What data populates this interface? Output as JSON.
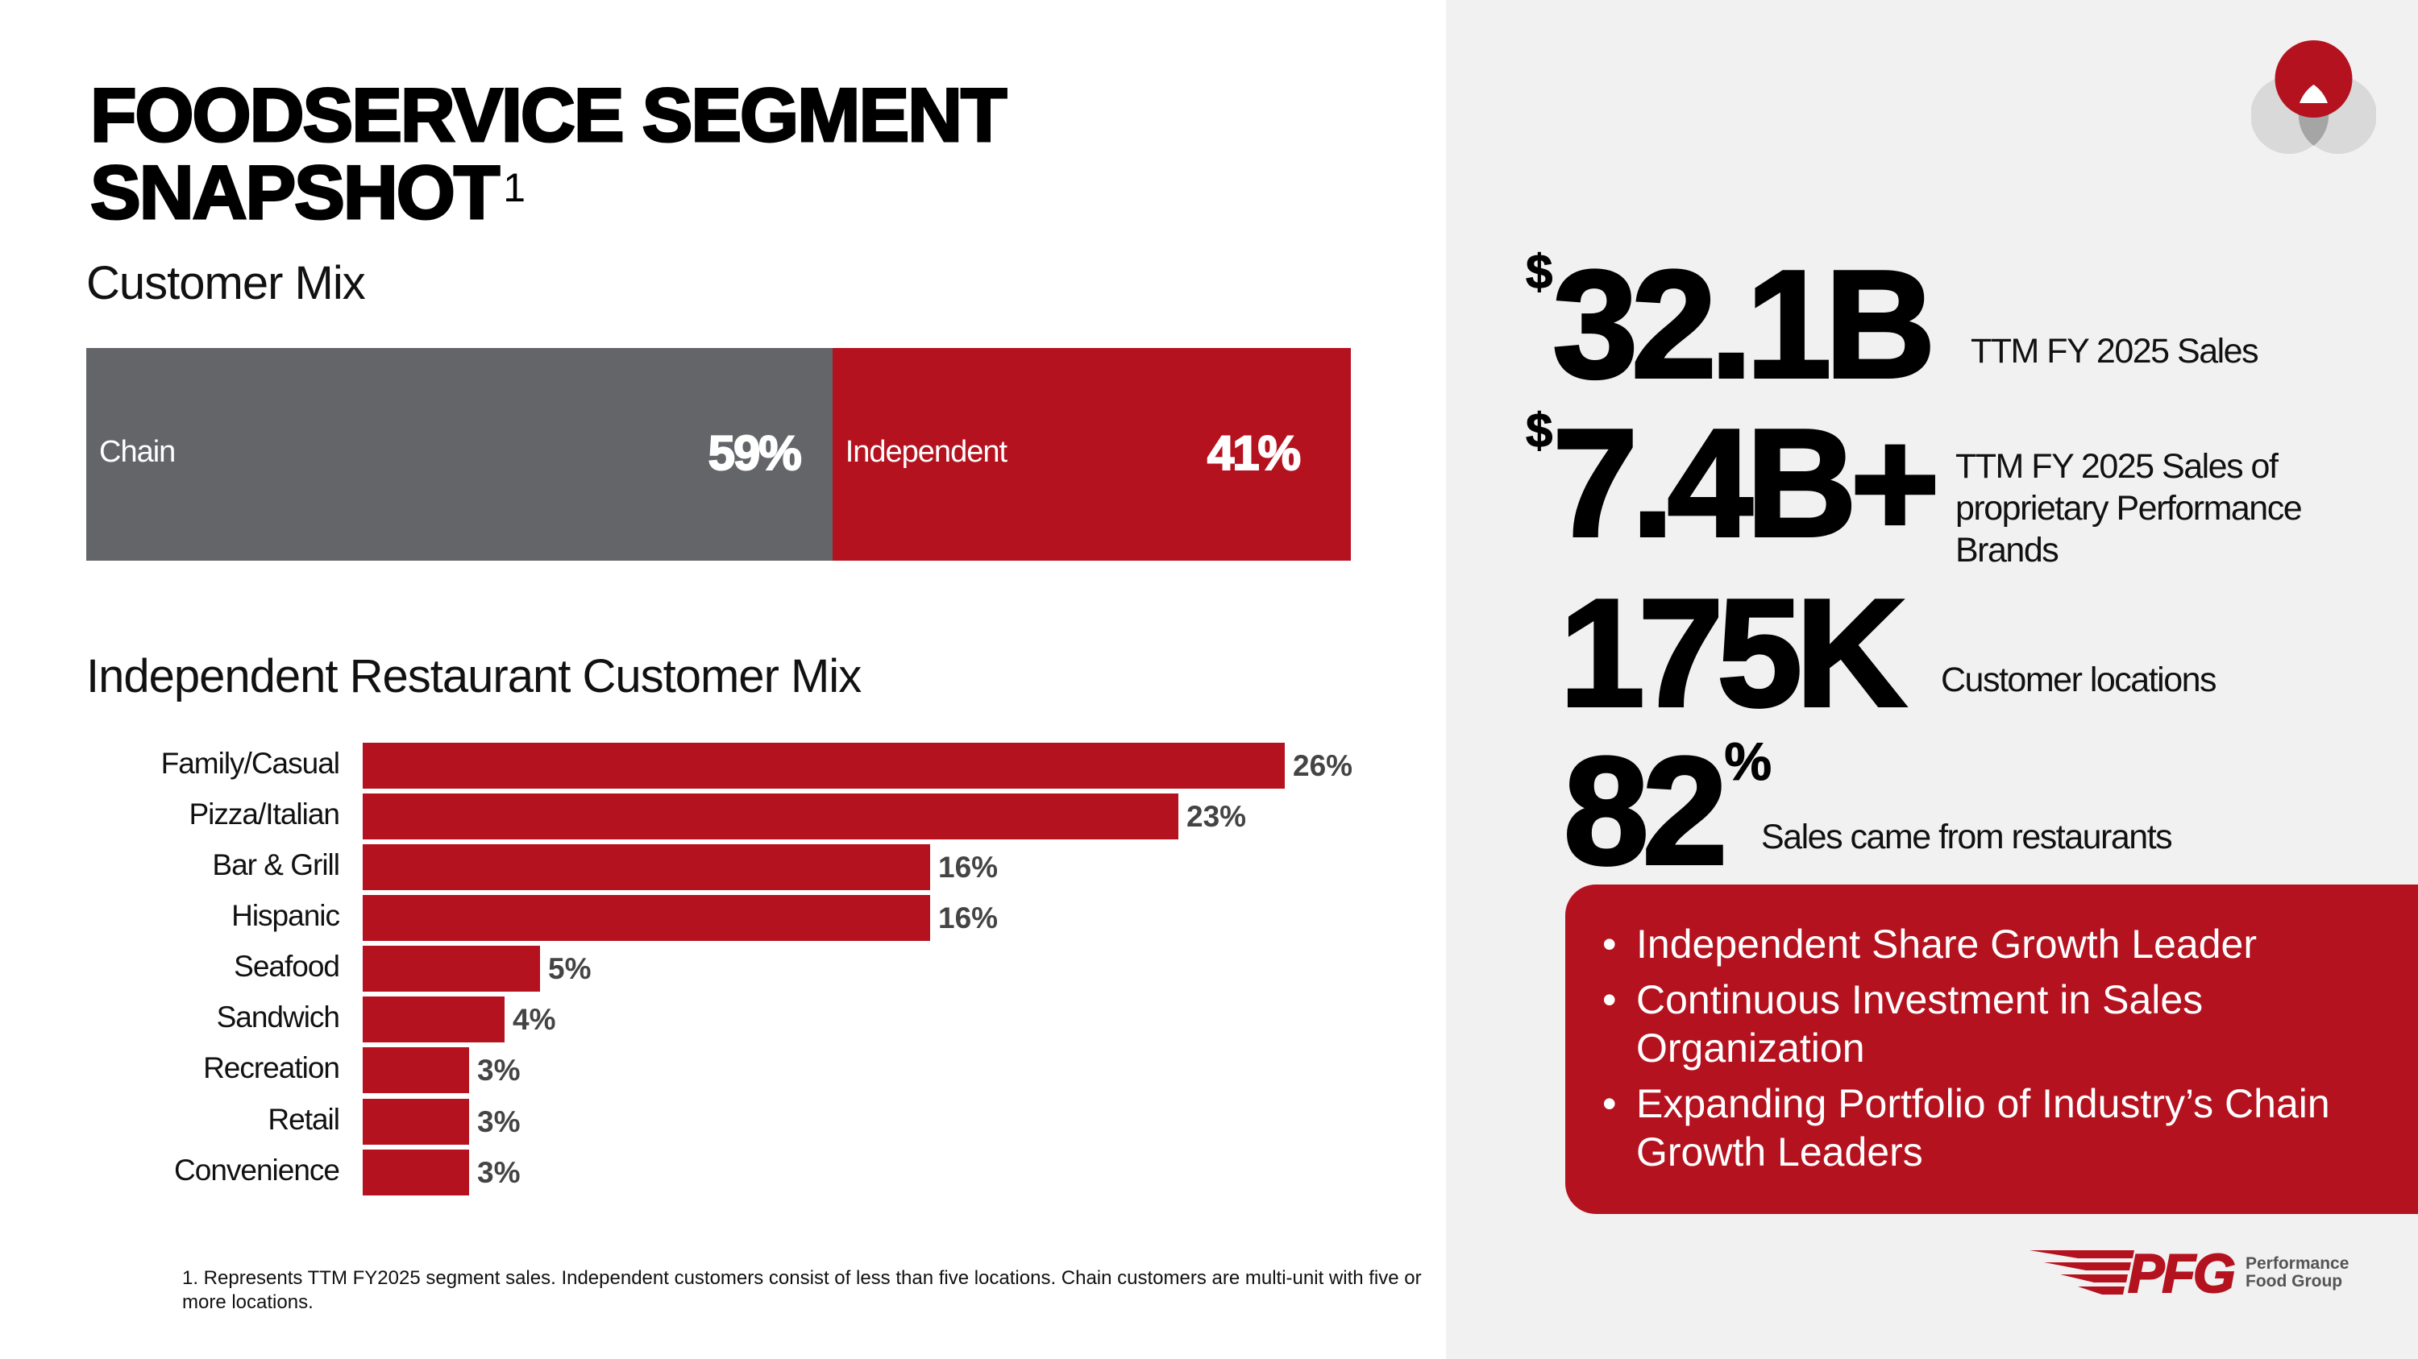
{
  "title": {
    "line1": "FOODSERVICE SEGMENT",
    "line2": "SNAPSHOT",
    "footnote_marker": "1"
  },
  "customer_mix": {
    "heading": "Customer Mix",
    "segments": [
      {
        "label": "Chain",
        "value": "59%",
        "pct": 59,
        "color": "#636569"
      },
      {
        "label": "Independent",
        "value": "41%",
        "pct": 41,
        "color": "#b5121f"
      }
    ]
  },
  "independent_mix": {
    "heading": "Independent Restaurant Customer Mix"
  },
  "chart_data": {
    "type": "bar",
    "orientation": "horizontal",
    "title": "Independent Restaurant Customer Mix",
    "categories": [
      "Family/Casual",
      "Pizza/Italian",
      "Bar & Grill",
      "Hispanic",
      "Seafood",
      "Sandwich",
      "Recreation",
      "Retail",
      "Convenience"
    ],
    "values": [
      26,
      23,
      16,
      16,
      5,
      4,
      3,
      3,
      3
    ],
    "data_labels": [
      "26%",
      "23%",
      "16%",
      "16%",
      "5%",
      "4%",
      "3%",
      "3%",
      "3%"
    ],
    "unit": "%",
    "color": "#b5121f"
  },
  "footnote": "1. Represents TTM FY2025 segment sales. Independent customers consist of less than five locations. Chain customers are multi-unit with five or more locations.",
  "stats": [
    {
      "prefix": "$",
      "value": "32.1B",
      "label": "TTM FY 2025 Sales"
    },
    {
      "prefix": "$",
      "value": "7.4B+",
      "label_lines": [
        "TTM FY 2025 Sales of",
        "proprietary Performance",
        "Brands"
      ]
    },
    {
      "value": "175K",
      "label": "Customer locations"
    },
    {
      "value": "82",
      "suffix": "%",
      "label": "Sales came from restaurants"
    }
  ],
  "highlights": [
    "Independent Share Growth Leader",
    "Continuous Investment in Sales Organization",
    "Expanding Portfolio of Industry’s Chain Growth Leaders"
  ],
  "logo": {
    "mark": "PFG",
    "name_line1": "Performance",
    "name_line2": "Food Group"
  },
  "colors": {
    "brand_red": "#b5121f",
    "gray": "#636569",
    "panel": "#f1f1f1"
  }
}
